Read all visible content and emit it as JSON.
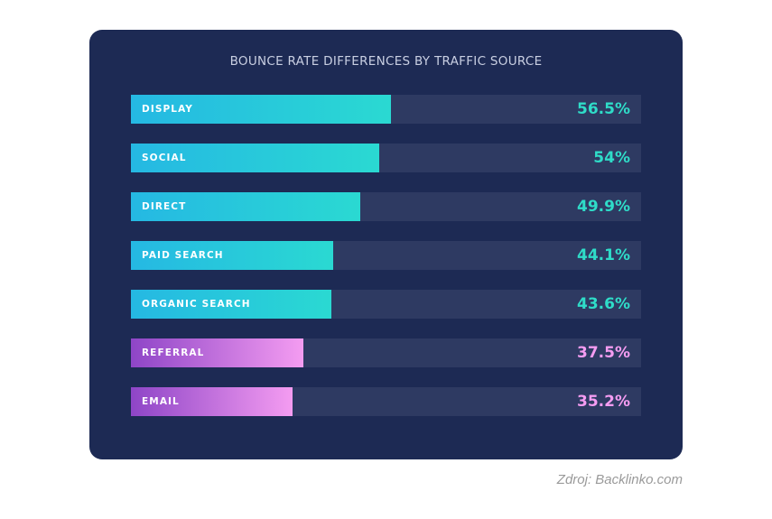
{
  "chart_data": {
    "type": "bar",
    "orientation": "horizontal",
    "title": "BOUNCE RATE DIFFERENCES BY TRAFFIC SOURCE",
    "categories": [
      "DISPLAY",
      "SOCIAL",
      "DIRECT",
      "PAID SEARCH",
      "ORGANIC SEARCH",
      "REFERRAL",
      "EMAIL"
    ],
    "values": [
      56.5,
      54,
      49.9,
      44.1,
      43.6,
      37.5,
      35.2
    ],
    "value_labels": [
      "56.5%",
      "54%",
      "49.9%",
      "44.1%",
      "43.6%",
      "37.5%",
      "35.2%"
    ],
    "color_groups": [
      "teal",
      "teal",
      "teal",
      "teal",
      "teal",
      "pink",
      "pink"
    ],
    "xlim": [
      0,
      111
    ],
    "grid": false,
    "legend": "none"
  },
  "colors": {
    "card_background": "#1d2a54",
    "track": "#2e3a62",
    "teal": "#2ad9d2",
    "pink": "#f49cf1"
  },
  "source": "Zdroj: Backlinko.com"
}
